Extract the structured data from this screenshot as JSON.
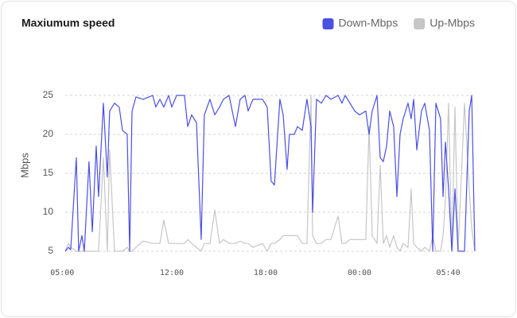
{
  "chart_data": {
    "type": "line",
    "title": "Maxiumum speed",
    "y_label": "Mbps",
    "x": [
      5.19,
      5.39,
      5.54,
      5.9,
      6.05,
      6.26,
      6.41,
      6.71,
      6.92,
      7.17,
      7.32,
      7.63,
      7.88,
      8.03,
      8.34,
      8.64,
      8.85,
      9.15,
      9.31,
      9.46,
      9.71,
      10.17,
      10.78,
      10.98,
      11.24,
      11.49,
      11.8,
      12.0,
      12.31,
      12.81,
      13.02,
      13.27,
      13.58,
      13.88,
      14.08,
      14.44,
      14.75,
      15.05,
      15.3,
      15.66,
      16.07,
      16.37,
      16.68,
      16.88,
      17.19,
      17.8,
      18.1,
      18.35,
      18.56,
      18.91,
      19.12,
      19.37,
      19.52,
      19.83,
      20.03,
      20.34,
      20.64,
      20.9,
      21.0,
      21.25,
      21.56,
      21.86,
      22.17,
      22.63,
      22.88,
      23.08,
      23.39,
      23.69,
      24.0,
      24.4,
      24.61,
      24.81,
      25.12,
      25.32,
      25.52,
      25.73,
      25.93,
      26.18,
      26.39,
      26.59,
      26.79,
      27.1,
      27.3,
      27.46,
      27.66,
      27.96,
      28.17,
      28.47,
      28.68,
      28.88,
      29.18,
      29.34,
      29.49,
      29.69,
      29.9,
      30.1,
      30.3,
      30.71,
      31.01,
      31.17,
      31.37
    ],
    "series": [
      {
        "name": "Down-Mbps",
        "color": "#4b4fe3",
        "values": [
          5,
          5.5,
          5.2,
          17,
          5,
          7,
          5,
          16.5,
          7.5,
          18.5,
          12,
          24,
          14.5,
          23,
          24,
          23.5,
          20.5,
          20,
          5,
          23,
          24.8,
          24.5,
          25,
          23.5,
          24.5,
          23.5,
          25,
          23.5,
          25,
          25,
          21,
          22.5,
          21.5,
          6.5,
          22.5,
          24.5,
          22.5,
          23.5,
          24.5,
          25,
          21,
          24.5,
          25,
          23,
          24.5,
          24.5,
          23.5,
          14,
          13.5,
          24.5,
          22.5,
          15.5,
          20,
          20,
          21,
          20.5,
          24.5,
          21,
          10,
          24.5,
          24,
          25,
          24.5,
          25,
          24,
          25,
          24,
          23,
          22.5,
          23,
          20,
          23,
          25,
          17,
          16.5,
          18.5,
          23,
          21,
          12,
          20,
          22,
          24,
          22,
          24.5,
          18,
          23,
          24,
          20.5,
          5,
          24,
          22,
          12,
          19,
          13,
          5,
          13,
          5,
          5,
          23,
          25,
          5
        ]
      },
      {
        "name": "Up-Mbps",
        "color": "#c6c6c6",
        "values": [
          5,
          6,
          5.5,
          5,
          5,
          5,
          5,
          5,
          5,
          5,
          5,
          17,
          5,
          18,
          5,
          5,
          5,
          5.5,
          5,
          5,
          5.5,
          6.3,
          6,
          6,
          6,
          9,
          6,
          6,
          6,
          6,
          6.5,
          6,
          5.5,
          5,
          6,
          6,
          10.3,
          6,
          6.5,
          6,
          6,
          6.3,
          6,
          6,
          5.5,
          6,
          5,
          6,
          6,
          6.5,
          7,
          7,
          7,
          7,
          7,
          6,
          6,
          25,
          7,
          6,
          6,
          6.5,
          6.5,
          9.5,
          6,
          6,
          6.5,
          6.5,
          6.5,
          6.5,
          21,
          7,
          6,
          16,
          6,
          7,
          5.5,
          7,
          5.5,
          5,
          6,
          5.5,
          13,
          6,
          5.5,
          5,
          5.5,
          5,
          7,
          5,
          5,
          7,
          11.5,
          24,
          5,
          23.5,
          5,
          24,
          13,
          8,
          5
        ]
      }
    ],
    "xlim": [
      5.19,
      31.37
    ],
    "xticks": [
      {
        "value": 5,
        "label": "05:00"
      },
      {
        "value": 12,
        "label": "12:00"
      },
      {
        "value": 18,
        "label": "18:00"
      },
      {
        "value": 24,
        "label": "00:00"
      },
      {
        "value": 29.67,
        "label": "05:40"
      }
    ],
    "ylim": [
      5,
      25
    ],
    "yticks": [
      5,
      10,
      15,
      20,
      25
    ],
    "grid": true,
    "legend": "top-right"
  }
}
